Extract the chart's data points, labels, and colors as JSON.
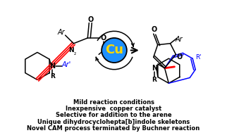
{
  "background_color": "#ffffff",
  "text_lines": [
    "Mild reaction conditions",
    "Inexpensive  copper catalyst",
    "Selective for addition to the arene",
    "Unique dihydrocyclohepta[b]indole skeletons",
    "Novel CAM process terminated by Buchner reaction"
  ],
  "cu_circle_color": "#1e90ff",
  "cu_text_color": "#ffd700",
  "cu_text": "Cu"
}
